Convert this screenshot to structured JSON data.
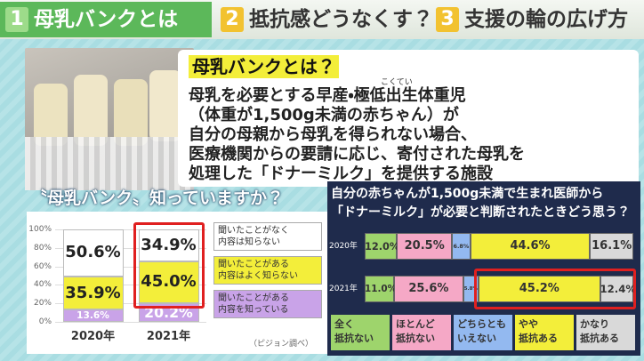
{
  "tabs": [
    {
      "number": "1",
      "label": "母乳バンクとは"
    },
    {
      "number": "2",
      "label": "抵抗感どうなくす？"
    },
    {
      "number": "3",
      "label": "支援の輪の広げ方"
    }
  ],
  "info": {
    "title": "母乳バンクとは？",
    "ruby": "こくてい",
    "lines": [
      "母乳を必要とする早産・極低出生体重児",
      "（体重が1,500g未満の赤ちゃん）が",
      "自分の母親から母乳を得られない場合、",
      "医療機関からの要請に応じ、寄付された母乳を",
      "処理した「ドナーミルク」を提供する施設"
    ]
  },
  "chart_data": [
    {
      "type": "bar",
      "stacked": true,
      "title": "〝母乳バンク〟知っていますか？",
      "categories": [
        "2020年",
        "2021年"
      ],
      "series": [
        {
          "name": "聞いたことがある\n内容を知っている",
          "color": "#c9a3e8",
          "values": [
            13.6,
            20.2
          ],
          "value_labels": [
            "13.6%",
            "20.2%"
          ]
        },
        {
          "name": "聞いたことがある\n内容はよく知らない",
          "color": "#f3ee3a",
          "values": [
            35.9,
            45.0
          ],
          "value_labels": [
            "35.9%",
            "45.0%"
          ]
        },
        {
          "name": "聞いたことがなく\n内容は知らない",
          "color": "#ffffff",
          "values": [
            50.6,
            34.9
          ],
          "value_labels": [
            "50.6%",
            "34.9%"
          ]
        }
      ],
      "ylim": [
        0,
        100
      ],
      "yticks": [
        {
          "value": 0,
          "label": "0%"
        },
        {
          "value": 20,
          "label": "20%"
        },
        {
          "value": 40,
          "label": "40%"
        },
        {
          "value": 60,
          "label": "60%"
        },
        {
          "value": 80,
          "label": "80%"
        },
        {
          "value": 100,
          "label": "100%"
        }
      ],
      "grid": true,
      "source": "（ピジョン調べ）"
    },
    {
      "type": "hbar",
      "stacked": true,
      "title": "自分の赤ちゃんが1,500g未満で生まれ医師から\n「ドナーミルク」が必要と判断されたときどう思う？",
      "categories": [
        "2020年",
        "2021年"
      ],
      "series": [
        {
          "name": "全く\n抵抗ない",
          "color": "#9ed46c",
          "values": [
            12.0,
            11.0
          ],
          "value_labels": [
            "12.0%",
            "11.0%"
          ]
        },
        {
          "name": "ほとんど\n抵抗ない",
          "color": "#f5a8c6",
          "values": [
            20.5,
            25.6
          ],
          "value_labels": [
            "20.5%",
            "25.6%"
          ]
        },
        {
          "name": "どちらとも\nいえない",
          "color": "#93b9f0",
          "values": [
            6.8,
            5.8
          ],
          "value_labels": [
            "6.8%",
            "5.8%"
          ]
        },
        {
          "name": "やや\n抵抗ある",
          "color": "#f3ee3a",
          "values": [
            44.6,
            45.2
          ],
          "value_labels": [
            "44.6%",
            "45.2%"
          ]
        },
        {
          "name": "かなり\n抵抗ある",
          "color": "#d9d9d9",
          "values": [
            16.1,
            12.4
          ],
          "value_labels": [
            "16.1%",
            "12.4%"
          ]
        }
      ],
      "xlim": [
        0,
        100
      ]
    }
  ]
}
